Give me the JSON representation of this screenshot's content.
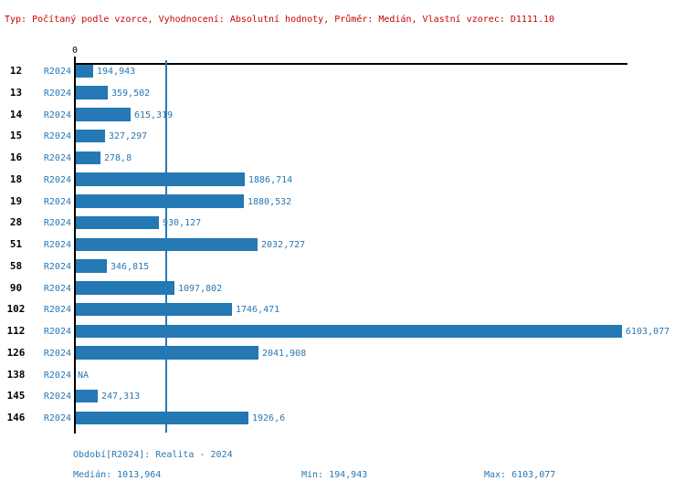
{
  "header": {
    "text": "Typ: Počítaný podle vzorce, Vyhodnocení: Absolutní hodnoty, Průměr: Medián, Vlastní vzorec: D1111.10"
  },
  "chart_data": {
    "type": "bar",
    "orientation": "horizontal",
    "title": "",
    "xlabel": "",
    "ylabel": "",
    "xlim": [
      0,
      6103.077
    ],
    "grid": false,
    "axis_zero_label": "0",
    "series_name": "R2024",
    "median_line": {
      "value": 1013.964
    },
    "categories": [
      "12",
      "13",
      "14",
      "15",
      "16",
      "18",
      "19",
      "28",
      "51",
      "58",
      "90",
      "102",
      "112",
      "126",
      "138",
      "145",
      "146"
    ],
    "rows": [
      {
        "category": "12",
        "period": "R2024",
        "value": 194.943,
        "value_label": "194,943"
      },
      {
        "category": "13",
        "period": "R2024",
        "value": 359.502,
        "value_label": "359,502"
      },
      {
        "category": "14",
        "period": "R2024",
        "value": 615.319,
        "value_label": "615,319"
      },
      {
        "category": "15",
        "period": "R2024",
        "value": 327.297,
        "value_label": "327,297"
      },
      {
        "category": "16",
        "period": "R2024",
        "value": 278.8,
        "value_label": "278,8"
      },
      {
        "category": "18",
        "period": "R2024",
        "value": 1886.714,
        "value_label": "1886,714"
      },
      {
        "category": "19",
        "period": "R2024",
        "value": 1880.532,
        "value_label": "1880,532"
      },
      {
        "category": "28",
        "period": "R2024",
        "value": 930.127,
        "value_label": "930,127"
      },
      {
        "category": "51",
        "period": "R2024",
        "value": 2032.727,
        "value_label": "2032,727"
      },
      {
        "category": "58",
        "period": "R2024",
        "value": 346.815,
        "value_label": "346,815"
      },
      {
        "category": "90",
        "period": "R2024",
        "value": 1097.802,
        "value_label": "1097,802"
      },
      {
        "category": "102",
        "period": "R2024",
        "value": 1746.471,
        "value_label": "1746,471"
      },
      {
        "category": "112",
        "period": "R2024",
        "value": 6103.077,
        "value_label": "6103,077"
      },
      {
        "category": "126",
        "period": "R2024",
        "value": 2041.908,
        "value_label": "2041,908"
      },
      {
        "category": "138",
        "period": "R2024",
        "value": null,
        "value_label": "NA"
      },
      {
        "category": "145",
        "period": "R2024",
        "value": 247.313,
        "value_label": "247,313"
      },
      {
        "category": "146",
        "period": "R2024",
        "value": 1926.6,
        "value_label": "1926,6"
      }
    ]
  },
  "footer": {
    "period_info": "Období[R2024]: Realita - 2024",
    "median": "Medián: 1013,964",
    "min": "Min: 194,943",
    "max": "Max: 6103,077"
  },
  "colors": {
    "background": "#ffffff",
    "bar": "#2478b4",
    "blue_text": "#2878b4",
    "header_text": "#cc0000",
    "axis": "#000000",
    "row_number": "#000000"
  }
}
